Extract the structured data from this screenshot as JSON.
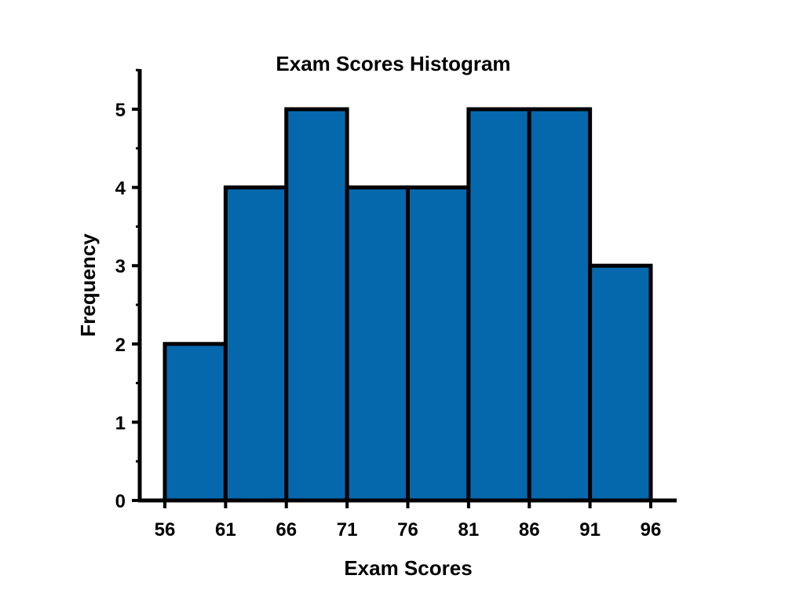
{
  "chart_data": {
    "type": "bar",
    "title": "Exam Scores Histogram",
    "xlabel": "Exam Scores",
    "ylabel": "Frequency",
    "bin_edges": [
      56,
      61,
      66,
      71,
      76,
      81,
      86,
      91,
      96
    ],
    "x_ticks": [
      "56",
      "61",
      "66",
      "71",
      "76",
      "81",
      "86",
      "91",
      "96"
    ],
    "values": [
      2,
      4,
      5,
      4,
      4,
      5,
      5,
      3
    ],
    "y_ticks": [
      "0",
      "1",
      "2",
      "3",
      "4",
      "5"
    ],
    "ylim": [
      0,
      5.5
    ],
    "xlim": [
      54,
      98
    ],
    "grid": false,
    "legend": "none",
    "bar_color": "#0568AD",
    "edge_color": "#000000"
  }
}
